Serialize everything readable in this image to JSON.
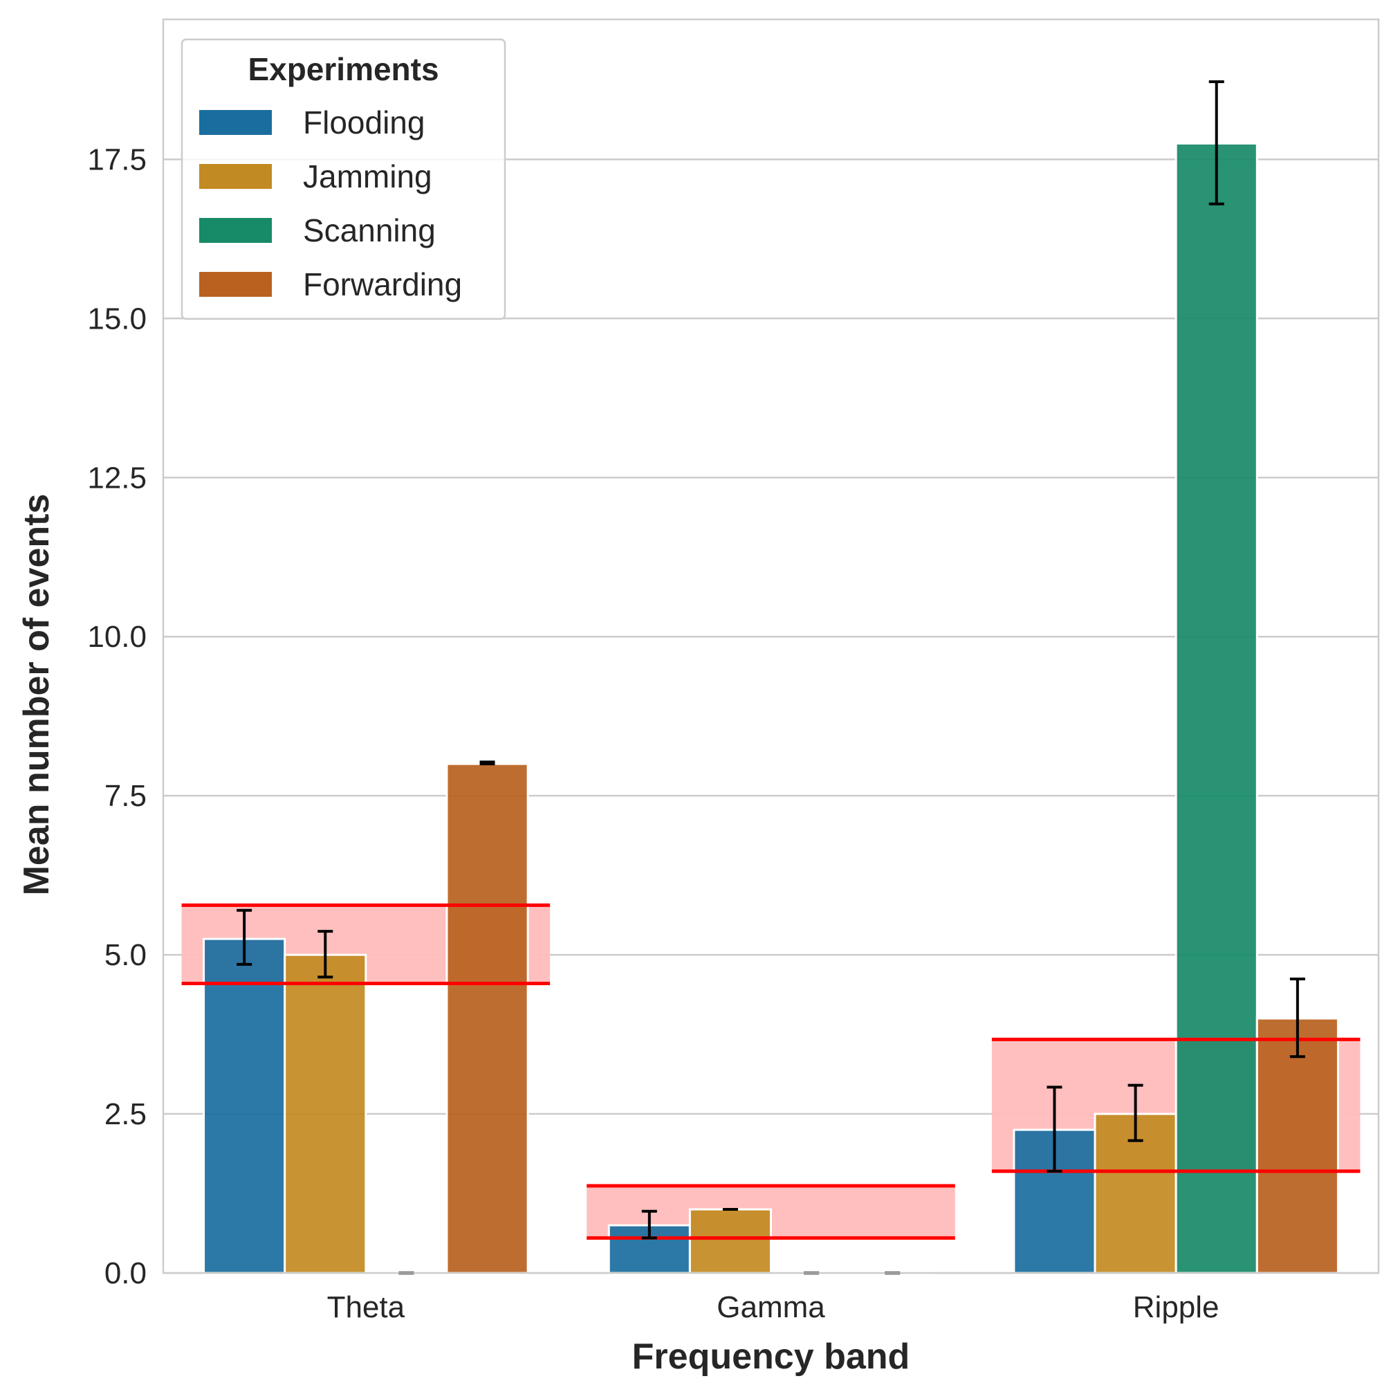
{
  "chart_data": {
    "type": "bar",
    "xlabel": "Frequency band",
    "ylabel": "Mean number of events",
    "categories": [
      "Theta",
      "Gamma",
      "Ripple"
    ],
    "ylim": [
      0,
      19.7
    ],
    "yticks": [
      0.0,
      2.5,
      5.0,
      7.5,
      10.0,
      12.5,
      15.0,
      17.5
    ],
    "ytick_labels": [
      "0.0",
      "2.5",
      "5.0",
      "7.5",
      "10.0",
      "12.5",
      "15.0",
      "17.5"
    ],
    "grid": "horizontal",
    "legend": {
      "title": "Experiments",
      "placement": "top-left"
    },
    "series": [
      {
        "name": "Flooding",
        "color": "#1a6e9f",
        "values": [
          5.25,
          0.75,
          2.25
        ],
        "err_low": [
          4.85,
          0.55,
          1.6
        ],
        "err_high": [
          5.7,
          0.97,
          2.92
        ]
      },
      {
        "name": "Jamming",
        "color": "#c28a22",
        "values": [
          5.0,
          1.0,
          2.5
        ],
        "err_low": [
          4.65,
          1.0,
          2.08
        ],
        "err_high": [
          5.37,
          1.0,
          2.95
        ]
      },
      {
        "name": "Scanning",
        "color": "#178a68",
        "values": [
          0.0,
          0.0,
          17.75
        ],
        "err_low": [
          0.0,
          0.0,
          16.8
        ],
        "err_high": [
          0.0,
          0.0,
          18.72
        ]
      },
      {
        "name": "Forwarding",
        "color": "#b9611f",
        "values": [
          8.0,
          0.0,
          4.0
        ],
        "err_low": [
          8.0,
          0.0,
          3.4
        ],
        "err_high": [
          8.03,
          0.0,
          4.62
        ]
      }
    ],
    "highlights": [
      {
        "category": "Theta",
        "y_low": 4.55,
        "y_high": 5.78
      },
      {
        "category": "Gamma",
        "y_low": 0.55,
        "y_high": 1.37
      },
      {
        "category": "Ripple",
        "y_low": 1.6,
        "y_high": 3.67
      }
    ],
    "highlight_colors": {
      "fill": "#ffbcbc",
      "line": "#ff0000"
    }
  }
}
